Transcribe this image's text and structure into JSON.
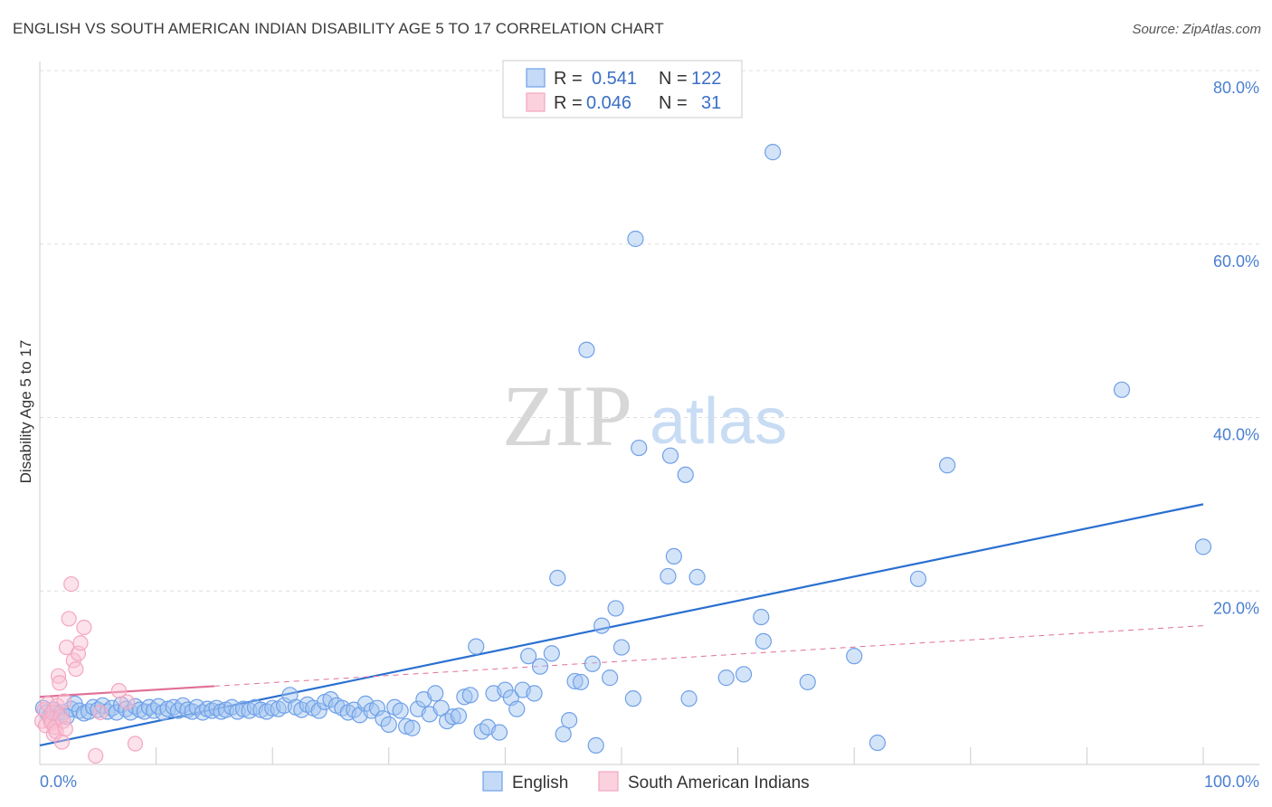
{
  "header": {
    "title": "ENGLISH VS SOUTH AMERICAN INDIAN DISABILITY AGE 5 TO 17 CORRELATION CHART",
    "source": "Source: ZipAtlas.com"
  },
  "watermark": {
    "zip": "ZIP",
    "atlas": "atlas"
  },
  "legend": {
    "rows": [
      {
        "r_label": "R =",
        "r_value": "0.541",
        "n_label": "N =",
        "n_value": "122"
      },
      {
        "r_label": "R =",
        "r_value": "0.046",
        "n_label": "N =",
        "n_value": "31"
      }
    ]
  },
  "chart_data": {
    "type": "scatter",
    "title": "ENGLISH VS SOUTH AMERICAN INDIAN DISABILITY AGE 5 TO 17 CORRELATION CHART",
    "ylabel": "Disability Age 5 to 17",
    "xlabel": "",
    "xlim": [
      0,
      100
    ],
    "ylim": [
      0,
      80
    ],
    "x_ticks": [
      "0.0%",
      "100.0%"
    ],
    "y_ticks": [
      "20.0%",
      "40.0%",
      "60.0%",
      "80.0%"
    ],
    "y_tick_values": [
      20,
      40,
      60,
      80
    ],
    "grid": "horizontal dashed",
    "legend_position": "top-center",
    "colors": {
      "English": "#6fa0e8",
      "South American Indians": "#f4a6bf",
      "english_line": "#2a6fd0",
      "sai_line": "#e07098"
    },
    "series": [
      {
        "name": "English",
        "r": 0.541,
        "n": 122,
        "trend": {
          "x": [
            0,
            100
          ],
          "y": [
            2.2,
            30.0
          ]
        },
        "points": [
          [
            0.3,
            6.5
          ],
          [
            0.6,
            6.0
          ],
          [
            0.9,
            5.6
          ],
          [
            1.2,
            6.3
          ],
          [
            1.5,
            5.9
          ],
          [
            1.9,
            6.0
          ],
          [
            2.3,
            5.5
          ],
          [
            2.7,
            6.4
          ],
          [
            3.0,
            7.0
          ],
          [
            3.4,
            6.2
          ],
          [
            3.8,
            5.9
          ],
          [
            4.2,
            6.1
          ],
          [
            4.6,
            6.6
          ],
          [
            5.0,
            6.3
          ],
          [
            5.4,
            6.8
          ],
          [
            5.8,
            6.1
          ],
          [
            6.2,
            6.5
          ],
          [
            6.6,
            6.0
          ],
          [
            7.0,
            6.9
          ],
          [
            7.4,
            6.4
          ],
          [
            7.8,
            6.0
          ],
          [
            8.2,
            6.7
          ],
          [
            8.6,
            6.3
          ],
          [
            9.0,
            6.1
          ],
          [
            9.4,
            6.6
          ],
          [
            9.8,
            6.2
          ],
          [
            10.2,
            6.7
          ],
          [
            10.6,
            6.0
          ],
          [
            11.0,
            6.4
          ],
          [
            11.5,
            6.6
          ],
          [
            11.9,
            6.2
          ],
          [
            12.3,
            6.8
          ],
          [
            12.7,
            6.3
          ],
          [
            13.1,
            6.1
          ],
          [
            13.5,
            6.6
          ],
          [
            14.0,
            6.0
          ],
          [
            14.4,
            6.4
          ],
          [
            14.8,
            6.2
          ],
          [
            15.2,
            6.5
          ],
          [
            15.6,
            6.1
          ],
          [
            16.0,
            6.3
          ],
          [
            16.5,
            6.6
          ],
          [
            17.0,
            6.1
          ],
          [
            17.5,
            6.4
          ],
          [
            18.0,
            6.2
          ],
          [
            18.5,
            6.6
          ],
          [
            19.0,
            6.3
          ],
          [
            19.5,
            6.1
          ],
          [
            20.0,
            6.5
          ],
          [
            20.5,
            6.4
          ],
          [
            21.0,
            6.8
          ],
          [
            21.5,
            8.0
          ],
          [
            22.0,
            6.6
          ],
          [
            22.5,
            6.3
          ],
          [
            23.0,
            6.9
          ],
          [
            23.5,
            6.5
          ],
          [
            24.0,
            6.2
          ],
          [
            24.5,
            7.2
          ],
          [
            25.0,
            7.5
          ],
          [
            25.5,
            6.8
          ],
          [
            26.0,
            6.5
          ],
          [
            26.5,
            6.0
          ],
          [
            27.0,
            6.3
          ],
          [
            27.5,
            5.7
          ],
          [
            28.0,
            7.0
          ],
          [
            28.5,
            6.2
          ],
          [
            29.0,
            6.5
          ],
          [
            29.5,
            5.3
          ],
          [
            30.0,
            4.6
          ],
          [
            30.5,
            6.6
          ],
          [
            31.0,
            6.2
          ],
          [
            31.5,
            4.4
          ],
          [
            32.0,
            4.2
          ],
          [
            32.5,
            6.4
          ],
          [
            33.0,
            7.5
          ],
          [
            33.5,
            5.8
          ],
          [
            34.0,
            8.2
          ],
          [
            34.5,
            6.5
          ],
          [
            35.0,
            5.0
          ],
          [
            35.5,
            5.5
          ],
          [
            36.0,
            5.6
          ],
          [
            36.5,
            7.8
          ],
          [
            37.0,
            8.0
          ],
          [
            37.5,
            13.6
          ],
          [
            38.0,
            3.8
          ],
          [
            38.5,
            4.3
          ],
          [
            39.0,
            8.2
          ],
          [
            39.5,
            3.7
          ],
          [
            40.0,
            8.6
          ],
          [
            40.5,
            7.7
          ],
          [
            41.0,
            6.4
          ],
          [
            41.5,
            8.6
          ],
          [
            42.0,
            12.5
          ],
          [
            42.5,
            8.2
          ],
          [
            43.0,
            11.3
          ],
          [
            44.0,
            12.8
          ],
          [
            44.5,
            21.5
          ],
          [
            45.0,
            3.5
          ],
          [
            45.5,
            5.1
          ],
          [
            46.0,
            9.6
          ],
          [
            46.5,
            9.5
          ],
          [
            47.0,
            47.8
          ],
          [
            47.5,
            11.6
          ],
          [
            47.8,
            2.2
          ],
          [
            48.3,
            16.0
          ],
          [
            49.0,
            10.0
          ],
          [
            49.5,
            18.0
          ],
          [
            50.0,
            13.5
          ],
          [
            51.0,
            7.6
          ],
          [
            51.2,
            60.6
          ],
          [
            51.5,
            36.5
          ],
          [
            54.0,
            21.7
          ],
          [
            54.2,
            35.6
          ],
          [
            54.5,
            24.0
          ],
          [
            55.5,
            33.4
          ],
          [
            55.8,
            7.6
          ],
          [
            56.5,
            21.6
          ],
          [
            59.0,
            10.0
          ],
          [
            60.5,
            10.4
          ],
          [
            62.0,
            17.0
          ],
          [
            62.2,
            14.2
          ],
          [
            63.0,
            70.6
          ],
          [
            66.0,
            9.5
          ],
          [
            70.0,
            12.5
          ],
          [
            72.0,
            2.5
          ],
          [
            75.5,
            21.4
          ],
          [
            78.0,
            34.5
          ],
          [
            93.0,
            43.2
          ],
          [
            100.0,
            25.1
          ]
        ]
      },
      {
        "name": "South American Indians",
        "r": 0.046,
        "n": 31,
        "trend": {
          "x": [
            0,
            100
          ],
          "y": [
            7.8,
            16.0
          ]
        },
        "trend_solid_until_x": 15,
        "points": [
          [
            0.2,
            5.0
          ],
          [
            0.4,
            6.3
          ],
          [
            0.5,
            4.5
          ],
          [
            0.7,
            7.0
          ],
          [
            0.9,
            5.2
          ],
          [
            1.0,
            4.8
          ],
          [
            1.1,
            6.0
          ],
          [
            1.2,
            3.5
          ],
          [
            1.3,
            4.3
          ],
          [
            1.4,
            3.8
          ],
          [
            1.5,
            6.8
          ],
          [
            1.6,
            10.2
          ],
          [
            1.7,
            9.4
          ],
          [
            1.8,
            5.5
          ],
          [
            1.9,
            2.6
          ],
          [
            2.0,
            5.0
          ],
          [
            2.1,
            7.3
          ],
          [
            2.2,
            4.1
          ],
          [
            2.3,
            13.5
          ],
          [
            2.5,
            16.8
          ],
          [
            2.7,
            20.8
          ],
          [
            2.9,
            12.0
          ],
          [
            3.1,
            11.0
          ],
          [
            3.3,
            12.8
          ],
          [
            3.5,
            14.0
          ],
          [
            3.8,
            15.8
          ],
          [
            4.8,
            1.0
          ],
          [
            5.2,
            6.0
          ],
          [
            6.8,
            8.5
          ],
          [
            7.5,
            7.2
          ],
          [
            8.2,
            2.4
          ]
        ]
      }
    ]
  },
  "bottom_legend": {
    "items": [
      {
        "label": "English"
      },
      {
        "label": "South American Indians"
      }
    ]
  }
}
